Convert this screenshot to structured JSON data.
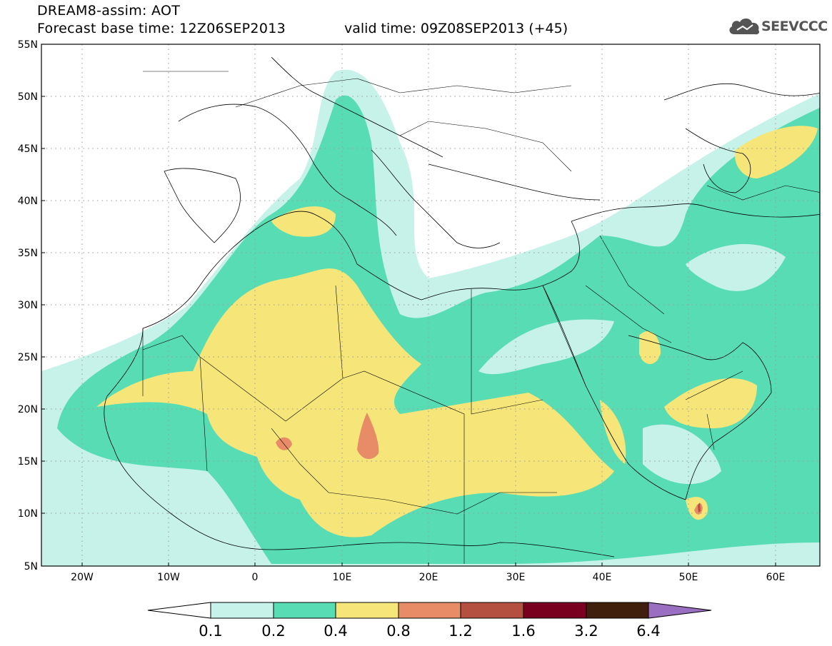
{
  "header": {
    "title_line1": "DREAM8-assim: AOT",
    "title_line2": "Forecast base time: 12Z06SEP2013",
    "valid_time": "valid time: 09Z08SEP2013 (+45)",
    "logo_text": "SEEVCCC",
    "logo_icon": "cloud-icon"
  },
  "map": {
    "lat_labels": [
      "55N",
      "50N",
      "45N",
      "40N",
      "35N",
      "30N",
      "25N",
      "20N",
      "15N",
      "10N",
      "5N"
    ],
    "lon_labels": [
      "20W",
      "10W",
      "0",
      "10E",
      "20E",
      "30E",
      "40E",
      "50E",
      "60E"
    ],
    "lat_range": [
      5,
      55
    ],
    "lon_range": [
      -25,
      65
    ],
    "grid": "dotted"
  },
  "colorbar": {
    "levels": [
      "0.1",
      "0.2",
      "0.4",
      "0.8",
      "1.2",
      "1.6",
      "3.2",
      "6.4"
    ],
    "colors": [
      "#c6f2ea",
      "#58dcb4",
      "#f6e67a",
      "#e88c68",
      "#b45040",
      "#7a0020",
      "#40200c",
      "#9a6ec0"
    ]
  }
}
